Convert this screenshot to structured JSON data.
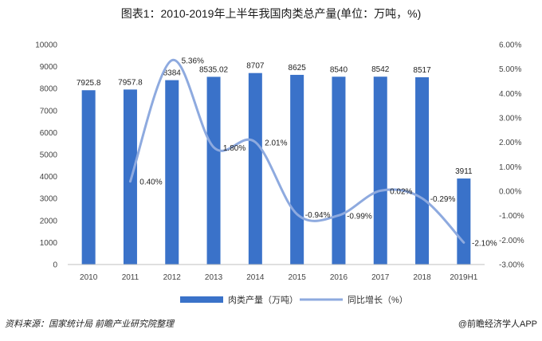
{
  "chart_data": {
    "type": "bar",
    "title": "图表1：2010-2019年上半年我国肉类总产量(单位：万吨，%)",
    "categories": [
      "2010",
      "2011",
      "2012",
      "2013",
      "2014",
      "2015",
      "2016",
      "2017",
      "2018",
      "2019H1"
    ],
    "series": [
      {
        "name": "肉类产量（万吨）",
        "type": "bar",
        "axis": "left",
        "values": [
          7925.8,
          7957.8,
          8384,
          8535.02,
          8707,
          8625,
          8540,
          8542,
          8517,
          3911
        ],
        "labels": [
          "7925.8",
          "7957.8",
          "8384",
          "8535.02",
          "8707",
          "8625",
          "8540",
          "8542",
          "8517",
          "3911"
        ],
        "color": "#3a72c9"
      },
      {
        "name": "同比增长（%）",
        "type": "line",
        "axis": "right",
        "x": [
          "2011",
          "2012",
          "2013",
          "2014",
          "2015",
          "2016",
          "2017",
          "2018",
          "2019H1"
        ],
        "values": [
          0.4,
          5.36,
          1.8,
          2.01,
          -0.94,
          -0.99,
          0.02,
          -0.29,
          -2.1
        ],
        "labels": [
          "0.40%",
          "5.36%",
          "1.80%",
          "2.01%",
          "-0.94%",
          "-0.99%",
          "0.02%",
          "-0.29%",
          "-2.10%"
        ],
        "color": "#8eaadf"
      }
    ],
    "y_left": {
      "range": [
        0,
        10000
      ],
      "ticks": [
        "0",
        "1000",
        "2000",
        "3000",
        "4000",
        "5000",
        "6000",
        "7000",
        "8000",
        "9000",
        "10000"
      ]
    },
    "y_right": {
      "range": [
        -3,
        6
      ],
      "ticks": [
        "-3.00%",
        "-2.00%",
        "-1.00%",
        "0.00%",
        "1.00%",
        "2.00%",
        "3.00%",
        "4.00%",
        "5.00%",
        "6.00%"
      ]
    },
    "grid": false,
    "legend": "bottom"
  },
  "footer": {
    "source": "资料来源：国家统计局 前瞻产业研究院整理",
    "brand": "@前瞻经济学人APP"
  }
}
